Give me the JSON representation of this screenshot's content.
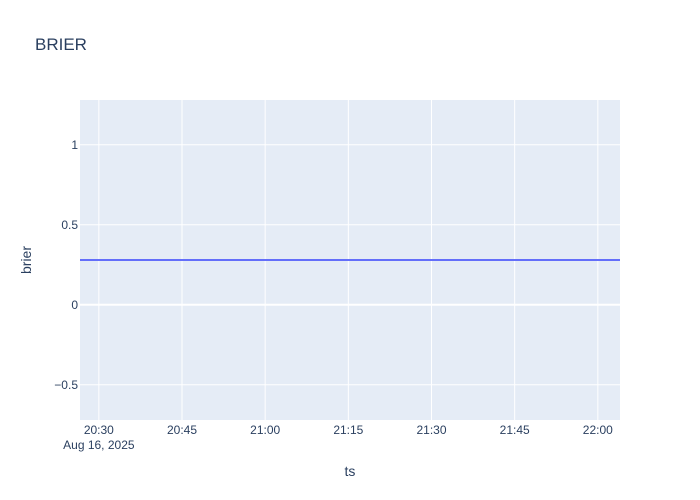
{
  "chart_data": {
    "type": "line",
    "title": "BRIER",
    "xlabel": "ts",
    "ylabel": "brier",
    "x_axis": {
      "type": "date",
      "range": [
        "2025-08-16T20:26:36",
        "2025-08-16T22:04:00"
      ],
      "ticks": [
        {
          "value": "2025-08-16T20:30",
          "label": "20:30",
          "sublabel": "Aug 16, 2025"
        },
        {
          "value": "2025-08-16T20:45",
          "label": "20:45"
        },
        {
          "value": "2025-08-16T21:00",
          "label": "21:00"
        },
        {
          "value": "2025-08-16T21:15",
          "label": "21:15"
        },
        {
          "value": "2025-08-16T21:30",
          "label": "21:30"
        },
        {
          "value": "2025-08-16T21:45",
          "label": "21:45"
        },
        {
          "value": "2025-08-16T22:00",
          "label": "22:00"
        }
      ]
    },
    "y_axis": {
      "range": [
        -0.72,
        1.28
      ],
      "ticks": [
        {
          "value": 1,
          "label": "1"
        },
        {
          "value": 0.5,
          "label": "0.5"
        },
        {
          "value": 0,
          "label": "0"
        },
        {
          "value": -0.5,
          "label": "−0.5"
        }
      ]
    },
    "grid": true,
    "series": [
      {
        "x": [
          "2025-08-16T20:26:36",
          "2025-08-16T22:04:00"
        ],
        "y": [
          0.28,
          0.28
        ],
        "color": "#636efa"
      }
    ]
  }
}
